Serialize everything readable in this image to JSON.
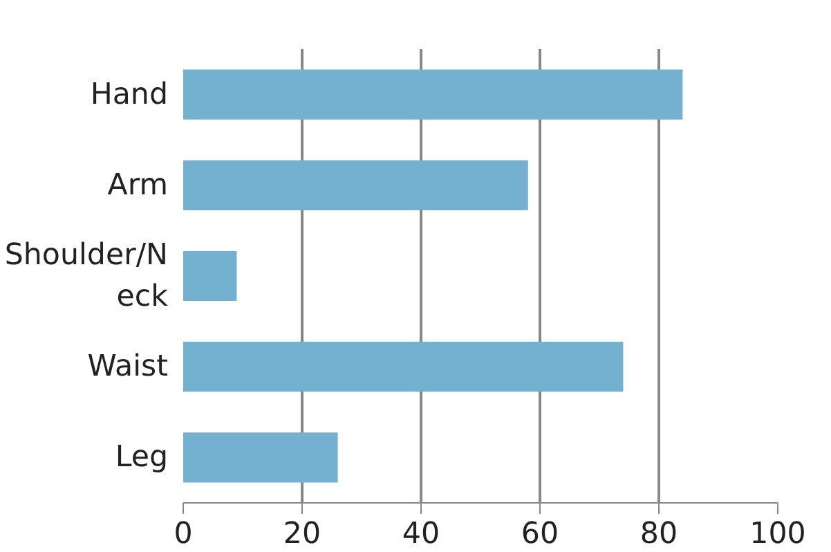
{
  "chart_data": {
    "type": "bar",
    "orientation": "horizontal",
    "categories": [
      "Hand",
      "Arm",
      "Shoulder/Neck",
      "Waist",
      "Leg"
    ],
    "values": [
      84,
      58,
      9,
      74,
      26
    ],
    "color": "#74b1d0",
    "xlim": [
      0,
      100
    ],
    "xticks": [
      0,
      20,
      40,
      60,
      80,
      100
    ],
    "grid": "x"
  }
}
